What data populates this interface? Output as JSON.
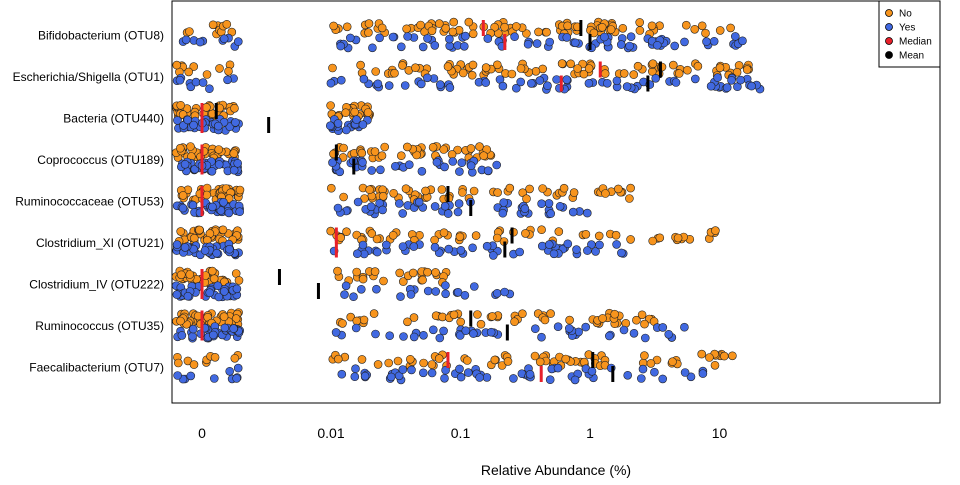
{
  "chart_data": {
    "type": "scatter",
    "xlabel": "Relative Abundance (%)",
    "x_scale": "pseudo-log",
    "x_ticks": [
      {
        "value": 0,
        "label": "0"
      },
      {
        "value": 0.01,
        "label": "0.01"
      },
      {
        "value": 0.1,
        "label": "0.1"
      },
      {
        "value": 1,
        "label": "1"
      },
      {
        "value": 10,
        "label": "10"
      }
    ],
    "categories": [
      "Bifidobacterium (OTU8)",
      "Escherichia/Shigella (OTU1)",
      "Bacteria (OTU440)",
      "Coprococcus (OTU189)",
      "Ruminococcaceae (OTU53)",
      "Clostridium_XI (OTU21)",
      "Clostridium_IV (OTU222)",
      "Ruminococcus (OTU35)",
      "Faecalibacterium (OTU7)"
    ],
    "legend": {
      "position": "top-right",
      "items": [
        {
          "label": "No",
          "color": "#f7941d"
        },
        {
          "label": "Yes",
          "color": "#4169e1"
        },
        {
          "label": "Median",
          "color": "#e8202a"
        },
        {
          "label": "Mean",
          "color": "#000000"
        }
      ]
    },
    "colors": {
      "No": "#f7941d",
      "Yes": "#4169e1",
      "Median": "#e8202a",
      "Mean": "#000000"
    },
    "series": [
      {
        "name": "No",
        "color": "#f7941d",
        "median": [
          0.15,
          1.2,
          0,
          0,
          0,
          0.011,
          0,
          0,
          0.08
        ],
        "mean": [
          0.85,
          3.5,
          0.0013,
          0.011,
          0.08,
          0.25,
          0.004,
          0.12,
          1.05
        ]
      },
      {
        "name": "Yes",
        "color": "#4169e1",
        "median": [
          0.22,
          0.6,
          0,
          0,
          0,
          0.011,
          0,
          0,
          0.42
        ],
        "mean": [
          1.0,
          2.8,
          0.0033,
          0.015,
          0.12,
          0.22,
          0.008,
          0.23,
          1.5
        ]
      }
    ],
    "grid": false
  }
}
